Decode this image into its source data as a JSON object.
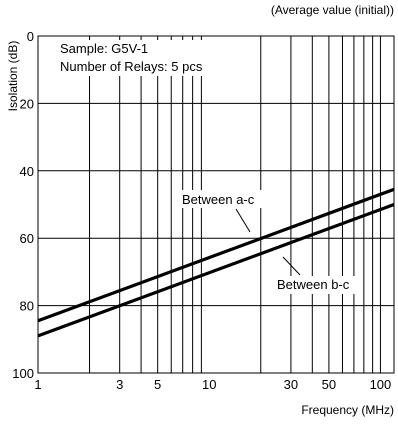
{
  "chart_data": {
    "type": "line",
    "subtitle": "(Average value (initial))",
    "xlabel": "Frequency (MHz)",
    "ylabel": "Isolation (dB)",
    "x_scale": "log",
    "xlim": [
      1,
      120
    ],
    "ylim": [
      0,
      100
    ],
    "y_inverted": true,
    "grid": true,
    "x_ticks": [
      1,
      3,
      5,
      10,
      30,
      50,
      100
    ],
    "x_tick_labels": [
      "1",
      "3",
      "5",
      "10",
      "30",
      "50",
      "100"
    ],
    "x_minor_grid": [
      2,
      3,
      4,
      5,
      6,
      7,
      8,
      9,
      20,
      30,
      40,
      50,
      60,
      70,
      80,
      90,
      100
    ],
    "y_ticks": [
      0,
      20,
      40,
      60,
      80,
      100
    ],
    "y_tick_labels": [
      "0",
      "20",
      "40",
      "60",
      "80",
      "100"
    ],
    "annotations": [
      "Sample: G5V-1",
      "Number of Relays: 5 pcs"
    ],
    "series": [
      {
        "name": "Between a-c",
        "x": [
          1,
          120
        ],
        "y": [
          84.5,
          45.5
        ]
      },
      {
        "name": "Between b-c",
        "x": [
          1,
          120
        ],
        "y": [
          89,
          50
        ]
      }
    ]
  }
}
